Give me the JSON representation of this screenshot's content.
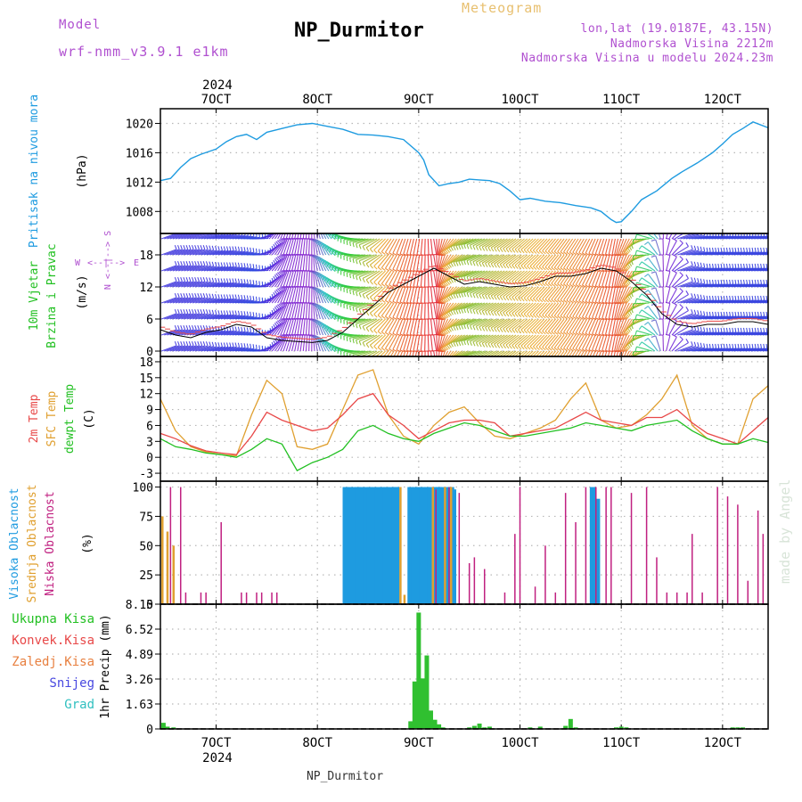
{
  "header": {
    "model_label": "Model",
    "model_name": "wrf-nmm_v3.9.1 e1km",
    "title": "NP_Durmitor",
    "meteogram": "Meteogram",
    "lonlat": "lon,lat (19.0187E, 43.15N)",
    "elevation": "Nadmorska Visina 2212m",
    "model_elevation": "Nadmorska Visina u modelu 2024.23m",
    "watermark": "made by Angel",
    "footer_station": "NP_Durmitor",
    "year": "2024"
  },
  "colors": {
    "pressure": "#1e9be0",
    "t2m": "#e84848",
    "sfc": "#e0a030",
    "dew": "#22c022",
    "high_cloud": "#1e9be0",
    "mid_cloud": "#e0a030",
    "low_cloud": "#c02080",
    "precip": "#30c030",
    "wind_west": "#2848e0",
    "wind_south": "#8822cc",
    "wind_east": "#30cc30",
    "wind_north": "#e82828"
  },
  "chart_data": [
    {
      "id": "pressure",
      "type": "line",
      "ylabel": "(hPa)",
      "side_labels": [
        "Pritisak na nivou mora"
      ],
      "x_ticks": [
        "7OCT",
        "8OCT",
        "9OCT",
        "10OCT",
        "11OCT",
        "12OCT"
      ],
      "xlim_days": [
        6.45,
        12.45
      ],
      "ylim": [
        1005,
        1022
      ],
      "yticks": [
        1008,
        1012,
        1016,
        1020
      ],
      "grid": true,
      "series": [
        {
          "x": [
            6.45,
            6.55,
            6.65,
            6.75,
            6.85,
            7.0,
            7.1,
            7.2,
            7.3,
            7.4,
            7.5,
            7.65,
            7.8,
            7.95,
            8.1,
            8.25,
            8.4,
            8.55,
            8.7,
            8.85,
            9.0,
            9.05,
            9.1,
            9.2,
            9.3,
            9.4,
            9.5,
            9.6,
            9.7,
            9.8,
            9.9,
            10.0,
            10.1,
            10.25,
            10.4,
            10.55,
            10.7,
            10.8,
            10.9,
            10.95,
            11.0,
            11.1,
            11.2,
            11.35,
            11.5,
            11.6,
            11.75,
            11.9,
            12.0,
            12.1,
            12.2,
            12.3,
            12.45
          ],
          "y": [
            1012.2,
            1012.5,
            1014.0,
            1015.2,
            1015.8,
            1016.5,
            1017.5,
            1018.2,
            1018.5,
            1017.8,
            1018.8,
            1019.3,
            1019.8,
            1020.0,
            1019.6,
            1019.2,
            1018.5,
            1018.4,
            1018.2,
            1017.8,
            1016.0,
            1015.0,
            1013.0,
            1011.5,
            1011.8,
            1012.0,
            1012.4,
            1012.3,
            1012.2,
            1011.8,
            1010.8,
            1009.6,
            1009.8,
            1009.4,
            1009.2,
            1008.8,
            1008.5,
            1008.0,
            1006.9,
            1006.5,
            1006.6,
            1008.0,
            1009.6,
            1010.8,
            1012.5,
            1013.4,
            1014.6,
            1016.0,
            1017.2,
            1018.5,
            1019.3,
            1020.2,
            1019.4
          ]
        }
      ]
    },
    {
      "id": "wind",
      "type": "scatter",
      "ylabel": "(m/s)",
      "side_labels": [
        "10m Vjetar",
        "Brzina i Pravac"
      ],
      "direction_key": [
        "N",
        "W",
        "E",
        "S"
      ],
      "xlim_days": [
        6.45,
        12.45
      ],
      "ylim": [
        -1,
        22
      ],
      "yticks": [
        0,
        6,
        12,
        18
      ],
      "grid": true,
      "series": [
        {
          "name": "",
          "x": [
            6.45,
            6.6,
            6.75,
            6.9,
            7.05,
            7.2,
            7.35,
            7.5,
            7.65,
            7.8,
            7.95,
            8.1,
            8.25,
            8.4,
            8.55,
            8.7,
            8.85,
            9.0,
            9.15,
            9.3,
            9.45,
            9.6,
            9.75,
            9.9,
            10.05,
            10.2,
            10.35,
            10.5,
            10.65,
            10.8,
            10.95,
            11.1,
            11.25,
            11.4,
            11.55,
            11.7,
            11.85,
            12.0,
            12.15,
            12.3,
            12.45
          ],
          "y": [
            4.0,
            3.0,
            2.5,
            3.5,
            4.0,
            5.0,
            4.5,
            2.5,
            2.0,
            1.8,
            1.6,
            2.0,
            3.5,
            6.0,
            8.5,
            11.0,
            12.5,
            14.0,
            15.5,
            14.0,
            12.5,
            13.0,
            12.5,
            12.0,
            12.2,
            13.0,
            14.0,
            14.0,
            14.5,
            15.5,
            15.0,
            13.0,
            10.5,
            7.0,
            5.0,
            4.5,
            5.0,
            5.0,
            5.5,
            5.5,
            5.0
          ],
          "dir": [
            250,
            250,
            250,
            255,
            255,
            260,
            270,
            230,
            200,
            190,
            180,
            150,
            120,
            90,
            70,
            40,
            20,
            10,
            350,
            30,
            60,
            70,
            60,
            55,
            50,
            45,
            40,
            35,
            30,
            20,
            10,
            30,
            70,
            170,
            250,
            260,
            260,
            260,
            260,
            260,
            260
          ]
        }
      ]
    },
    {
      "id": "temperature",
      "type": "line",
      "ylabel": "(C)",
      "side_labels": [
        "2m Temp",
        "SFC Temp",
        "dewpt Temp"
      ],
      "xlim_days": [
        6.45,
        12.45
      ],
      "ylim": [
        -4.5,
        19
      ],
      "yticks": [
        -3,
        0,
        3,
        6,
        9,
        12,
        15,
        18
      ],
      "grid": true,
      "series": [
        {
          "name": "2m Temp",
          "x": [
            6.45,
            6.6,
            6.75,
            6.9,
            7.05,
            7.2,
            7.35,
            7.5,
            7.65,
            7.8,
            7.95,
            8.1,
            8.25,
            8.4,
            8.55,
            8.7,
            8.85,
            9.0,
            9.15,
            9.3,
            9.45,
            9.6,
            9.75,
            9.9,
            10.05,
            10.2,
            10.35,
            10.5,
            10.65,
            10.8,
            10.95,
            11.1,
            11.25,
            11.4,
            11.55,
            11.7,
            11.85,
            12.0,
            12.15,
            12.3,
            12.45
          ],
          "y": [
            4.5,
            3.5,
            2.2,
            1.2,
            0.8,
            0.5,
            4.0,
            8.5,
            7.0,
            6.0,
            5.0,
            5.5,
            8.0,
            11.0,
            12.0,
            8.0,
            6.0,
            3.5,
            5.0,
            6.5,
            7.0,
            7.0,
            6.5,
            4.0,
            4.5,
            5.0,
            5.5,
            7.0,
            8.5,
            7.0,
            6.5,
            6.0,
            7.5,
            7.5,
            9.0,
            6.5,
            4.5,
            3.5,
            2.5,
            5.0,
            7.5
          ]
        },
        {
          "name": "SFC Temp",
          "x": [
            6.45,
            6.6,
            6.75,
            6.9,
            7.05,
            7.2,
            7.35,
            7.5,
            7.65,
            7.8,
            7.95,
            8.1,
            8.25,
            8.4,
            8.55,
            8.7,
            8.85,
            9.0,
            9.15,
            9.3,
            9.45,
            9.6,
            9.75,
            9.9,
            10.05,
            10.2,
            10.35,
            10.5,
            10.65,
            10.8,
            10.95,
            11.1,
            11.25,
            11.4,
            11.55,
            11.7,
            11.85,
            12.0,
            12.15,
            12.3,
            12.45
          ],
          "y": [
            11.0,
            5.0,
            2.0,
            1.0,
            0.5,
            0.3,
            8.0,
            14.5,
            12.0,
            2.0,
            1.5,
            2.5,
            9.0,
            15.5,
            16.5,
            8.0,
            4.0,
            2.5,
            6.0,
            8.5,
            9.5,
            6.5,
            4.0,
            3.5,
            4.5,
            5.5,
            7.0,
            11.0,
            14.0,
            7.0,
            5.5,
            6.0,
            8.0,
            11.0,
            15.5,
            6.0,
            3.5,
            2.5,
            2.5,
            11.0,
            13.5
          ]
        },
        {
          "name": "dewpt Temp",
          "x": [
            6.45,
            6.6,
            6.75,
            6.9,
            7.05,
            7.2,
            7.35,
            7.5,
            7.65,
            7.8,
            7.95,
            8.1,
            8.25,
            8.4,
            8.55,
            8.7,
            8.85,
            9.0,
            9.15,
            9.3,
            9.45,
            9.6,
            9.75,
            9.9,
            10.05,
            10.2,
            10.35,
            10.5,
            10.65,
            10.8,
            10.95,
            11.1,
            11.25,
            11.4,
            11.55,
            11.7,
            11.85,
            12.0,
            12.15,
            12.3,
            12.45
          ],
          "y": [
            3.5,
            2.0,
            1.5,
            0.8,
            0.5,
            0.0,
            1.5,
            3.5,
            2.5,
            -2.5,
            -1.0,
            0.0,
            1.5,
            5.0,
            6.0,
            4.5,
            3.5,
            3.0,
            4.5,
            5.5,
            6.5,
            6.0,
            5.0,
            4.0,
            4.0,
            4.5,
            5.0,
            5.5,
            6.5,
            6.0,
            5.5,
            5.0,
            6.0,
            6.5,
            7.0,
            5.0,
            3.5,
            2.5,
            2.5,
            3.5,
            2.8
          ]
        }
      ]
    },
    {
      "id": "cloud",
      "type": "bar",
      "ylabel": "(%)",
      "side_labels": [
        "Visoka Oblacnost",
        "Srednja Oblacnost",
        "Niska Oblacnost"
      ],
      "xlim_days": [
        6.45,
        12.45
      ],
      "ylim": [
        0,
        105
      ],
      "yticks": [
        0,
        25,
        50,
        75,
        100
      ],
      "grid": true,
      "series": [
        {
          "name": "Visoka Oblacnost",
          "x": [
            8.28,
            8.32,
            8.36,
            8.4,
            8.44,
            8.48,
            8.52,
            8.56,
            8.6,
            8.64,
            8.68,
            8.72,
            8.76,
            8.78,
            8.92,
            8.96,
            9.0,
            9.04,
            9.08,
            9.12,
            9.16,
            9.2,
            9.24,
            9.28,
            9.32,
            9.34,
            10.72,
            10.76
          ],
          "y": [
            100,
            100,
            100,
            100,
            100,
            100,
            100,
            100,
            100,
            100,
            100,
            100,
            100,
            100,
            100,
            100,
            100,
            100,
            100,
            100,
            100,
            100,
            100,
            100,
            100,
            98,
            100,
            90
          ]
        },
        {
          "name": "Srednja Oblacnost",
          "x": [
            6.47,
            6.52,
            6.58,
            8.82,
            8.86,
            9.14,
            9.26,
            9.32
          ],
          "y": [
            75,
            62,
            50,
            100,
            8,
            100,
            100,
            100
          ]
        },
        {
          "name": "Niska Oblacnost",
          "x": [
            6.55,
            6.65,
            6.7,
            6.85,
            6.9,
            7.05,
            7.25,
            7.3,
            7.4,
            7.45,
            7.55,
            7.6,
            9.17,
            9.3,
            9.4,
            9.5,
            9.55,
            9.65,
            9.85,
            9.95,
            10.0,
            10.15,
            10.25,
            10.35,
            10.45,
            10.55,
            10.65,
            10.75,
            10.85,
            10.9,
            11.1,
            11.25,
            11.35,
            11.45,
            11.55,
            11.65,
            11.7,
            11.8,
            11.95,
            12.05,
            12.15,
            12.25,
            12.35,
            12.4
          ],
          "y": [
            100,
            100,
            10,
            10,
            10,
            70,
            10,
            10,
            10,
            10,
            10,
            10,
            98,
            100,
            95,
            35,
            40,
            30,
            10,
            60,
            100,
            15,
            50,
            10,
            95,
            70,
            100,
            100,
            100,
            100,
            95,
            100,
            40,
            10,
            10,
            10,
            60,
            10,
            100,
            92,
            85,
            20,
            80,
            60
          ]
        }
      ]
    },
    {
      "id": "precip",
      "type": "bar",
      "ylabel": "1hr Precip (mm)",
      "side_labels": [
        "Ukupna Kisa",
        "Konvek.Kisa",
        "Zaledj.Kisa",
        "Snijeg",
        "Grad"
      ],
      "xlim_days": [
        6.45,
        12.45
      ],
      "ylim": [
        0,
        8.15
      ],
      "yticks": [
        0,
        1.63,
        3.26,
        4.89,
        6.52,
        8.15
      ],
      "ytick_labels": [
        "0",
        "1.63",
        "3.26",
        "4.89",
        "6.52",
        "8.15"
      ],
      "grid": true,
      "series": [
        {
          "name": "Ukupna Kisa",
          "x": [
            6.48,
            6.52,
            6.58,
            8.92,
            8.96,
            9.0,
            9.04,
            9.08,
            9.12,
            9.16,
            9.2,
            9.24,
            9.5,
            9.55,
            9.6,
            9.65,
            9.7,
            10.1,
            10.2,
            10.45,
            10.5,
            10.55,
            10.95,
            11.0,
            11.05,
            12.1,
            12.15,
            12.2
          ],
          "y": [
            0.4,
            0.15,
            0.1,
            0.5,
            3.1,
            7.6,
            3.3,
            4.8,
            1.2,
            0.6,
            0.3,
            0.1,
            0.1,
            0.2,
            0.35,
            0.1,
            0.15,
            0.1,
            0.15,
            0.2,
            0.65,
            0.1,
            0.1,
            0.15,
            0.1,
            0.1,
            0.1,
            0.1
          ]
        }
      ]
    }
  ]
}
